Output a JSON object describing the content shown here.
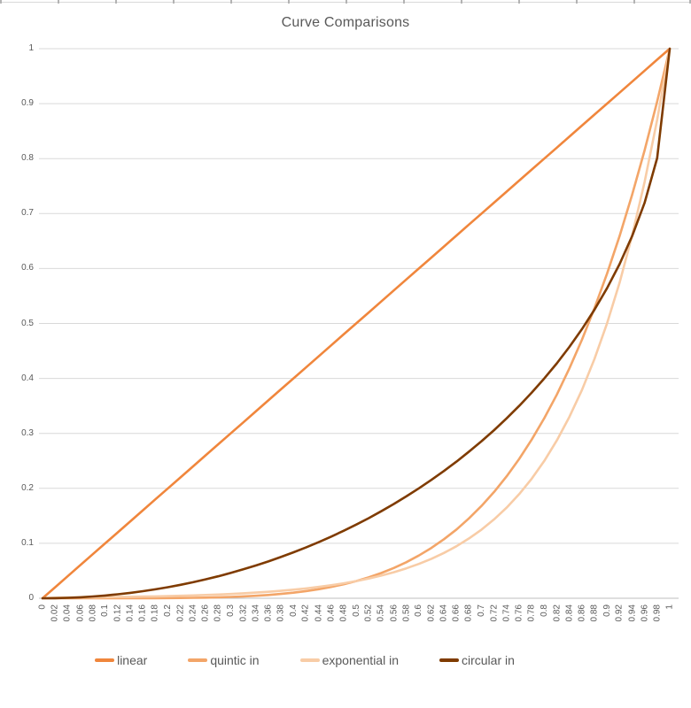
{
  "worksheet_edge": {
    "line_color": "#d9d9d9",
    "tick_color": "#b3b3b3",
    "tick_spacing_px": 65,
    "tick_count": 13
  },
  "colors": {
    "gridline": "#d9d9d9",
    "axis_line": "#bfbfbf",
    "text": "#595959",
    "background": "#ffffff"
  },
  "chart_data": {
    "type": "line",
    "title": "Curve Comparisons",
    "xlabel": "",
    "ylabel": "",
    "xlim": [
      0,
      1
    ],
    "ylim": [
      0,
      1
    ],
    "grid": "horizontal-only",
    "legend_position": "bottom",
    "x_tick_step": 0.02,
    "y_ticks": [
      0,
      0.1,
      0.2,
      0.3,
      0.4,
      0.5,
      0.6,
      0.7,
      0.8,
      0.9,
      1
    ],
    "x": [
      0,
      0.02,
      0.04,
      0.06,
      0.08,
      0.1,
      0.12,
      0.14,
      0.16,
      0.18,
      0.2,
      0.22,
      0.24,
      0.26,
      0.28,
      0.3,
      0.32,
      0.34,
      0.36,
      0.38,
      0.4,
      0.42,
      0.44,
      0.46,
      0.48,
      0.5,
      0.52,
      0.54,
      0.56,
      0.58,
      0.6,
      0.62,
      0.64,
      0.66,
      0.68,
      0.7,
      0.72,
      0.74,
      0.76,
      0.78,
      0.8,
      0.82,
      0.84,
      0.86,
      0.88,
      0.9,
      0.92,
      0.94,
      0.96,
      0.98,
      1
    ],
    "series": [
      {
        "name": "linear",
        "color": "#f0863c",
        "values": [
          0,
          0.02,
          0.04,
          0.06,
          0.08,
          0.1,
          0.12,
          0.14,
          0.16,
          0.18,
          0.2,
          0.22,
          0.24,
          0.26,
          0.28,
          0.3,
          0.32,
          0.34,
          0.36,
          0.38,
          0.4,
          0.42,
          0.44,
          0.46,
          0.48,
          0.5,
          0.52,
          0.54,
          0.56,
          0.58,
          0.6,
          0.62,
          0.64,
          0.66,
          0.68,
          0.7,
          0.72,
          0.74,
          0.76,
          0.78,
          0.8,
          0.82,
          0.84,
          0.86,
          0.88,
          0.9,
          0.92,
          0.94,
          0.96,
          0.98,
          1
        ]
      },
      {
        "name": "quintic in",
        "color": "#f3a568",
        "values": [
          0,
          0,
          0,
          0,
          0,
          0,
          0,
          0.0001,
          0.0001,
          0.0002,
          0.0003,
          0.0005,
          0.0008,
          0.0012,
          0.0017,
          0.0024,
          0.0034,
          0.0045,
          0.006,
          0.0079,
          0.0102,
          0.0131,
          0.0165,
          0.0206,
          0.0255,
          0.0313,
          0.038,
          0.0459,
          0.0551,
          0.0656,
          0.0778,
          0.0916,
          0.1074,
          0.1252,
          0.1454,
          0.1681,
          0.1935,
          0.2219,
          0.2536,
          0.2887,
          0.3277,
          0.3707,
          0.4182,
          0.4704,
          0.5277,
          0.5905,
          0.6591,
          0.7339,
          0.8154,
          0.9039,
          1
        ]
      },
      {
        "name": "exponential in",
        "color": "#f8cca6",
        "values": [
          0,
          0.0011,
          0.0013,
          0.0015,
          0.0017,
          0.002,
          0.0022,
          0.0026,
          0.003,
          0.0034,
          0.0039,
          0.0045,
          0.0052,
          0.0059,
          0.0068,
          0.0078,
          0.009,
          0.0103,
          0.0118,
          0.0136,
          0.0156,
          0.0179,
          0.0206,
          0.0237,
          0.0272,
          0.0313,
          0.0359,
          0.0412,
          0.0474,
          0.0544,
          0.0625,
          0.0718,
          0.0825,
          0.0947,
          0.1088,
          0.125,
          0.1436,
          0.1649,
          0.1895,
          0.2176,
          0.25,
          0.2872,
          0.3299,
          0.3789,
          0.4353,
          0.5,
          0.5743,
          0.6598,
          0.7579,
          0.8706,
          1
        ]
      },
      {
        "name": "circular in",
        "color": "#7f3b00",
        "values": [
          0,
          0.0002,
          0.0008,
          0.0018,
          0.0032,
          0.005,
          0.0072,
          0.0098,
          0.0129,
          0.0163,
          0.0202,
          0.0245,
          0.0292,
          0.0344,
          0.04,
          0.0461,
          0.0526,
          0.0596,
          0.067,
          0.075,
          0.0835,
          0.0925,
          0.102,
          0.1121,
          0.1227,
          0.134,
          0.1458,
          0.1583,
          0.1715,
          0.1854,
          0.2,
          0.2154,
          0.2316,
          0.2487,
          0.2668,
          0.2859,
          0.306,
          0.3274,
          0.3501,
          0.3742,
          0.4,
          0.4276,
          0.4574,
          0.4897,
          0.525,
          0.5641,
          0.6081,
          0.6588,
          0.72,
          0.801,
          1
        ]
      }
    ]
  }
}
